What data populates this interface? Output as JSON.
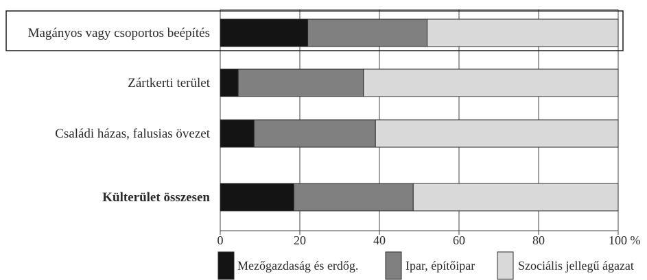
{
  "chart_data": {
    "type": "bar",
    "orientation": "horizontal",
    "stacked": true,
    "categories": [
      "Magányos vagy csoportos beépítés",
      "Zártkerti terület",
      "Családi házas, falusias övezet",
      "Külterület összesen"
    ],
    "highlighted_category": "Magányos vagy csoportos beépítés",
    "bold_category": "Külterület összesen",
    "series": [
      {
        "name": "Mezőgazdaság és erdőg.",
        "color": "#141414",
        "values": [
          22,
          4.5,
          8.5,
          18.5
        ]
      },
      {
        "name": "Ipar, építőipar",
        "color": "#808080",
        "values": [
          30,
          31.5,
          30.5,
          30
        ]
      },
      {
        "name": "Szociális jellegű ágazat",
        "color": "#d9d9d9",
        "values": [
          48,
          64,
          61,
          51.5
        ]
      }
    ],
    "xlim": [
      0,
      100
    ],
    "xticks": [
      "0",
      "20",
      "40",
      "60",
      "80",
      "100 %"
    ],
    "grid": true,
    "legend_position": "bottom"
  }
}
